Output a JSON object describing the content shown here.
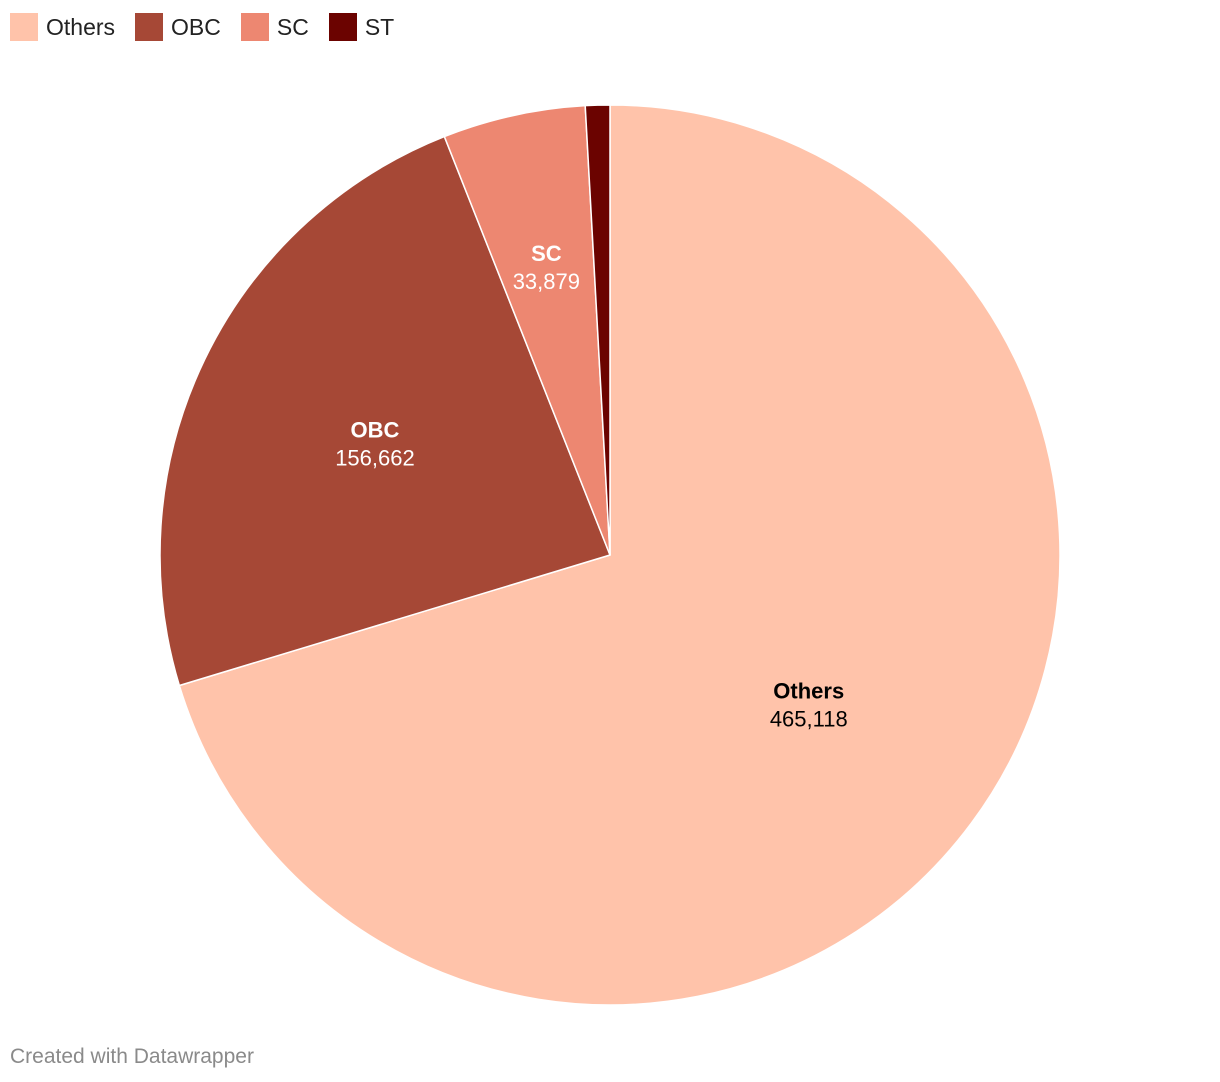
{
  "chart_data": {
    "type": "pie",
    "categories": [
      "Others",
      "OBC",
      "SC",
      "ST"
    ],
    "values": [
      465118,
      156662,
      33879,
      5800
    ],
    "value_labels": [
      "465,118",
      "156,662",
      "33,879",
      ""
    ],
    "colors": [
      "#ffc3aa",
      "#a64836",
      "#ed8771",
      "#6b0300"
    ],
    "label_colors": [
      "#000000",
      "#ffffff",
      "#ffffff",
      "#ffffff"
    ],
    "start_angle_deg": 0,
    "direction": "clockwise",
    "legend_position": "top-left"
  },
  "credit": "Created with Datawrapper"
}
